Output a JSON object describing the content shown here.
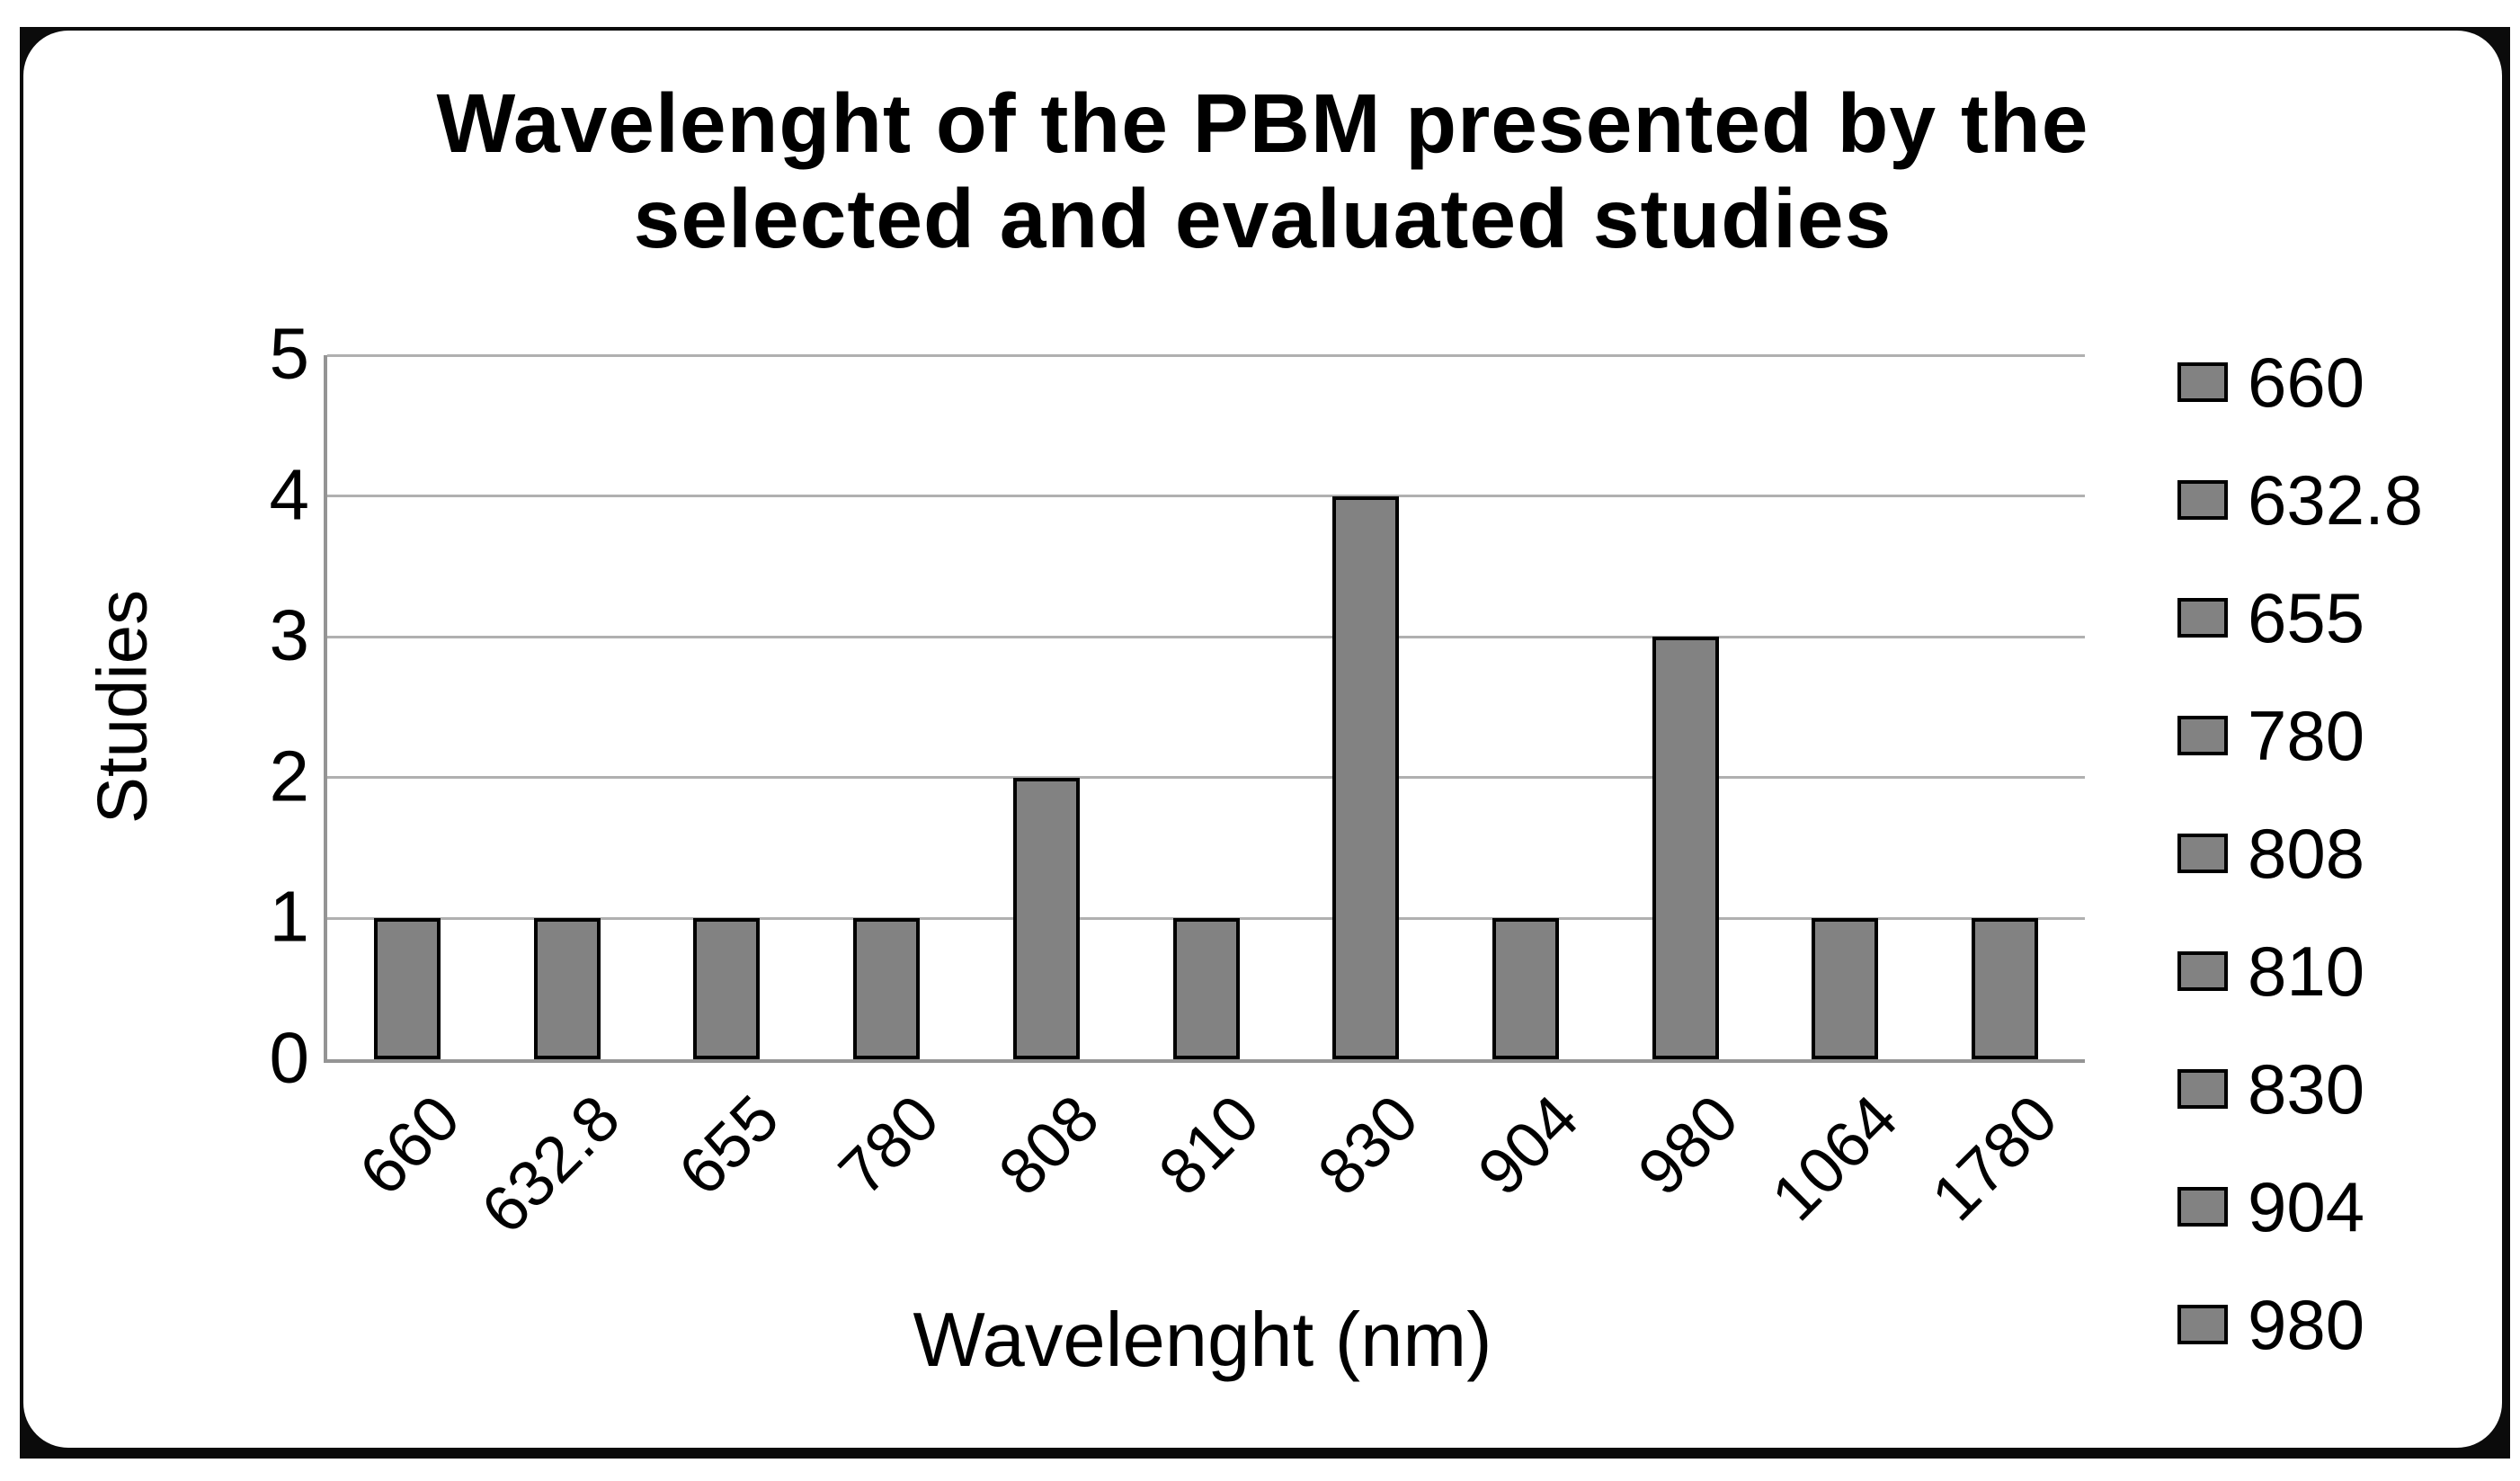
{
  "chart_data": {
    "type": "bar",
    "title": "Wavelenght of the PBM presented by the selected and evaluated studies",
    "title_lines": [
      "Wavelenght of the PBM presented by the",
      "selected and evaluated studies"
    ],
    "xlabel": "Wavelenght (nm)",
    "ylabel": "Studies",
    "categories": [
      "660",
      "632.8",
      "655",
      "780",
      "808",
      "810",
      "830",
      "904",
      "980",
      "1064",
      "1780"
    ],
    "values": [
      1,
      1,
      1,
      1,
      2,
      1,
      4,
      1,
      3,
      1,
      1
    ],
    "ylim": [
      0,
      5
    ],
    "yticks": [
      0,
      1,
      2,
      3,
      4,
      5
    ],
    "grid": true,
    "legend": {
      "position": "right",
      "entries": [
        "660",
        "632.8",
        "655",
        "780",
        "808",
        "810",
        "830",
        "904",
        "980"
      ]
    },
    "colors": {
      "bar_fill": "#828282",
      "bar_border": "#000000",
      "gridline": "#b0b0b0",
      "axis_line": "#949494",
      "frame": "#0b0b0b",
      "text": "#000000"
    }
  }
}
